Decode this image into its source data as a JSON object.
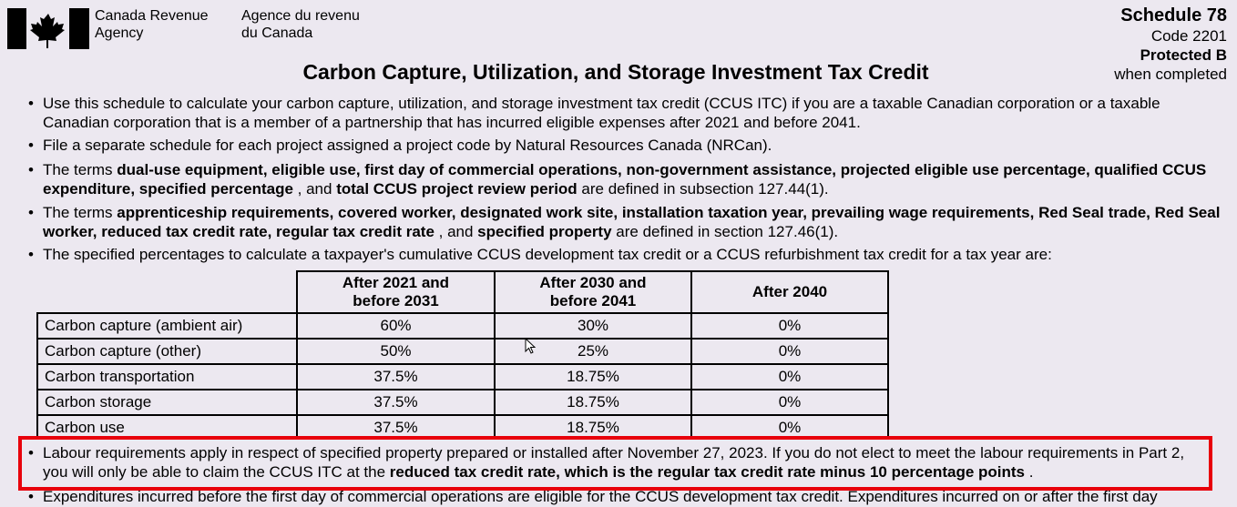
{
  "header": {
    "agency_en": [
      "Canada Revenue",
      "Agency"
    ],
    "agency_fr": [
      "Agence du revenu",
      "du Canada"
    ],
    "schedule": "Schedule 78",
    "code": "Code 2201",
    "protected": "Protected B",
    "when_completed": "when completed",
    "title": "Carbon Capture, Utilization, and Storage Investment Tax Credit"
  },
  "bullets": [
    {
      "runs": [
        {
          "text": "Use this schedule to calculate your carbon capture, utilization, and storage investment tax credit (CCUS ITC) if you are a taxable Canadian corporation or a taxable Canadian corporation that is a member of a partnership that has incurred eligible expenses after 2021 and before 2041.",
          "bold": false
        }
      ]
    },
    {
      "runs": [
        {
          "text": "File a separate schedule for each project assigned a project code by Natural Resources Canada (NRCan).",
          "bold": false
        }
      ]
    },
    {
      "runs": [
        {
          "text": "The terms ",
          "bold": false
        },
        {
          "text": "dual-use equipment, eligible use, first day of commercial operations, non-government assistance, projected eligible use percentage, qualified CCUS expenditure, specified percentage",
          "bold": true
        },
        {
          "text": " , and ",
          "bold": false
        },
        {
          "text": "total CCUS project review period",
          "bold": true
        },
        {
          "text": " are defined in subsection 127.44(1).",
          "bold": false
        }
      ]
    },
    {
      "runs": [
        {
          "text": "The terms ",
          "bold": false
        },
        {
          "text": "apprenticeship requirements, covered worker, designated work site, installation taxation year, prevailing wage requirements, Red Seal trade, Red Seal worker, reduced tax credit rate, regular tax credit rate",
          "bold": true
        },
        {
          "text": " , and ",
          "bold": false
        },
        {
          "text": "specified property",
          "bold": true
        },
        {
          "text": " are defined in section 127.46(1).",
          "bold": false
        }
      ]
    },
    {
      "runs": [
        {
          "text": "The specified percentages to calculate a taxpayer's cumulative CCUS development tax credit or a CCUS refurbishment tax credit for a tax year are:",
          "bold": false
        }
      ]
    }
  ],
  "table": {
    "columns": [
      [
        "After 2021 and",
        "before 2031"
      ],
      [
        "After 2030 and",
        "before 2041"
      ],
      [
        "After 2040"
      ]
    ],
    "rows": [
      {
        "label": "Carbon capture (ambient air)",
        "cells": [
          "60%",
          "30%",
          "0%"
        ]
      },
      {
        "label": "Carbon capture (other)",
        "cells": [
          "50%",
          "25%",
          "0%"
        ]
      },
      {
        "label": "Carbon transportation",
        "cells": [
          "37.5%",
          "18.75%",
          "0%"
        ]
      },
      {
        "label": "Carbon storage",
        "cells": [
          "37.5%",
          "18.75%",
          "0%"
        ]
      },
      {
        "label": "Carbon use",
        "cells": [
          "37.5%",
          "18.75%",
          "0%"
        ]
      }
    ]
  },
  "highlighted_bullet": {
    "runs": [
      {
        "text": "Labour requirements apply in respect of specified property prepared or installed after November 27, 2023. If you do not elect to meet the labour requirements in Part 2, you will only be able to claim the CCUS ITC at the ",
        "bold": false
      },
      {
        "text": "reduced tax credit rate, which is the regular tax credit rate minus 10 percentage points",
        "bold": true
      },
      {
        "text": " .",
        "bold": false
      }
    ]
  },
  "cut_bullet": {
    "runs": [
      {
        "text": "Expenditures incurred before the first day of commercial operations are eligible for the CCUS development tax credit. Expenditures incurred on or after the first day",
        "bold": false
      }
    ]
  }
}
